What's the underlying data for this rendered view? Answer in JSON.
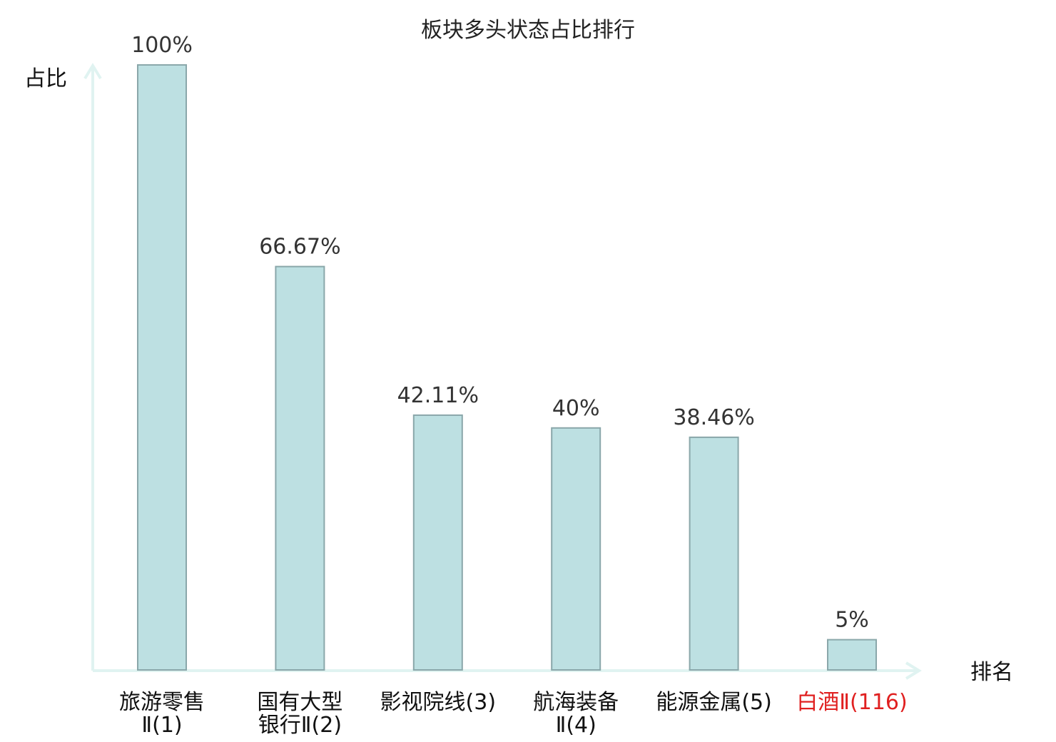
{
  "chart_data": {
    "type": "bar",
    "title": "板块多头状态占比排行",
    "ylabel": "占比",
    "xlabel": "排名",
    "ylim": [
      0,
      100
    ],
    "grid": false,
    "categories": [
      {
        "lines": [
          "旅游零售",
          "Ⅱ(1)"
        ],
        "highlight": false
      },
      {
        "lines": [
          "国有大型",
          "银行Ⅱ(2)"
        ],
        "highlight": false
      },
      {
        "lines": [
          "影视院线(3)"
        ],
        "highlight": false
      },
      {
        "lines": [
          "航海装备",
          "Ⅱ(4)"
        ],
        "highlight": false
      },
      {
        "lines": [
          "能源金属(5)"
        ],
        "highlight": false
      },
      {
        "lines": [
          "白酒Ⅱ(116)"
        ],
        "highlight": true
      }
    ],
    "values": [
      100,
      66.67,
      42.11,
      40,
      38.46,
      5
    ],
    "value_labels": [
      "100%",
      "66.67%",
      "42.11%",
      "40%",
      "38.46%",
      "5%"
    ],
    "colors": {
      "bar_fill": "#bde0e2",
      "bar_stroke": "#8aa7aa",
      "axis": "#e0f3f1",
      "text": "#333333",
      "highlight_text": "#e02020"
    }
  }
}
